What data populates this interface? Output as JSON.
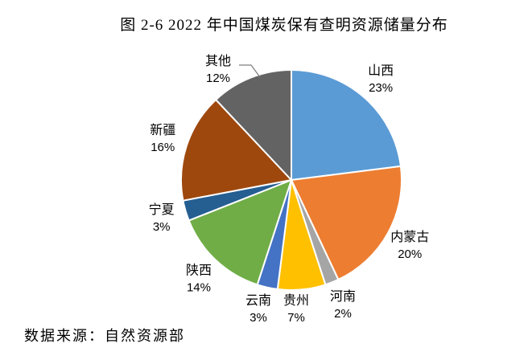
{
  "title": "图 2-6 2022 年中国煤炭保有查明资源储量分布",
  "source": "数据来源：自然资源部",
  "chart_data": {
    "type": "pie",
    "title": "图 2-6 2022 年中国煤炭保有查明资源储量分布",
    "unit": "%",
    "start_angle_deg": 0,
    "direction": "clockwise",
    "legend_position": "none",
    "labels_position": "outside",
    "background_color": "#ffffff",
    "slice_border_color": "#ffffff",
    "categories": [
      "山西",
      "内蒙古",
      "河南",
      "贵州",
      "云南",
      "陕西",
      "宁夏",
      "新疆",
      "其他"
    ],
    "values": [
      23,
      20,
      2,
      7,
      3,
      14,
      3,
      16,
      12
    ],
    "slices": [
      {
        "name": "山西",
        "value": 23,
        "label": "23%",
        "color": "#5B9BD5"
      },
      {
        "name": "内蒙古",
        "value": 20,
        "label": "20%",
        "color": "#ED7D31"
      },
      {
        "name": "河南",
        "value": 2,
        "label": "2%",
        "color": "#A5A5A5"
      },
      {
        "name": "贵州",
        "value": 7,
        "label": "7%",
        "color": "#FFC000"
      },
      {
        "name": "云南",
        "value": 3,
        "label": "3%",
        "color": "#4472C4"
      },
      {
        "name": "陕西",
        "value": 14,
        "label": "14%",
        "color": "#70AD47"
      },
      {
        "name": "宁夏",
        "value": 3,
        "label": "3%",
        "color": "#255E91"
      },
      {
        "name": "新疆",
        "value": 16,
        "label": "16%",
        "color": "#9E480E"
      },
      {
        "name": "其他",
        "value": 12,
        "label": "12%",
        "color": "#636363"
      }
    ]
  }
}
